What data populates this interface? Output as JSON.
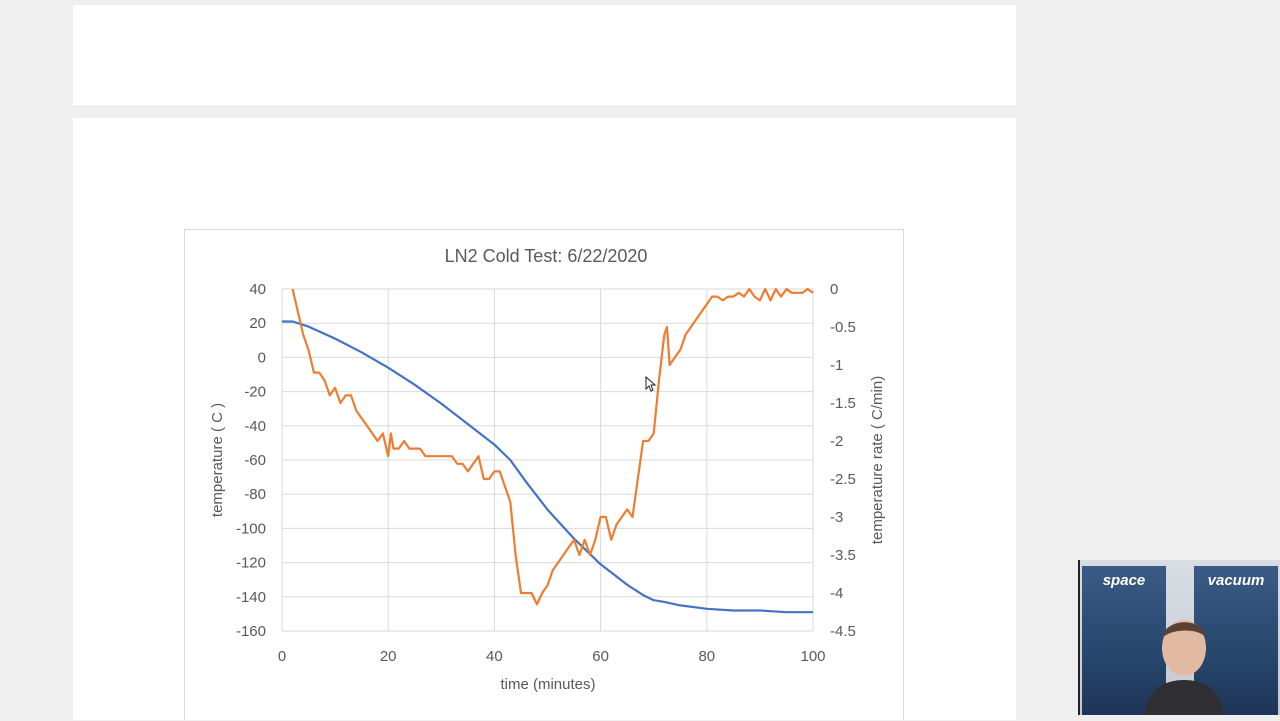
{
  "chart_data": {
    "type": "line",
    "title": "LN2 Cold Test: 6/22/2020",
    "xlabel": "time (minutes)",
    "ylabel": "temperature ( C )",
    "y2label": "temperature rate ( C/min)",
    "xlim": [
      0,
      100
    ],
    "ylim": [
      -160,
      40
    ],
    "y2lim": [
      -4.5,
      0
    ],
    "x_ticks": [
      "0",
      "20",
      "40",
      "60",
      "80",
      "100"
    ],
    "y_ticks": [
      "40",
      "20",
      "0",
      "-20",
      "-40",
      "-60",
      "-80",
      "-100",
      "-120",
      "-140",
      "-160"
    ],
    "y2_ticks": [
      "0",
      "-0.5",
      "-1",
      "-1.5",
      "-2",
      "-2.5",
      "-3",
      "-3.5",
      "-4",
      "-4.5"
    ],
    "grid": true,
    "series": [
      {
        "color": "#4472c4",
        "axis": "left",
        "points": [
          [
            0,
            21
          ],
          [
            2,
            21
          ],
          [
            5,
            18
          ],
          [
            10,
            11
          ],
          [
            15,
            3
          ],
          [
            20,
            -6
          ],
          [
            25,
            -16
          ],
          [
            30,
            -27
          ],
          [
            35,
            -39
          ],
          [
            40,
            -51
          ],
          [
            43,
            -60
          ],
          [
            46,
            -73
          ],
          [
            50,
            -89
          ],
          [
            55,
            -106
          ],
          [
            60,
            -121
          ],
          [
            65,
            -133
          ],
          [
            68,
            -139
          ],
          [
            70,
            -142
          ],
          [
            72,
            -143
          ],
          [
            75,
            -145
          ],
          [
            80,
            -147
          ],
          [
            85,
            -148
          ],
          [
            90,
            -148
          ],
          [
            95,
            -149
          ],
          [
            100,
            -149
          ]
        ]
      },
      {
        "color": "#ed7d31",
        "axis": "right",
        "points": [
          [
            2,
            0
          ],
          [
            3,
            -0.3
          ],
          [
            4,
            -0.6
          ],
          [
            5,
            -0.8
          ],
          [
            6,
            -1.1
          ],
          [
            7,
            -1.1
          ],
          [
            8,
            -1.2
          ],
          [
            9,
            -1.4
          ],
          [
            10,
            -1.3
          ],
          [
            11,
            -1.5
          ],
          [
            12,
            -1.4
          ],
          [
            13,
            -1.4
          ],
          [
            14,
            -1.6
          ],
          [
            15,
            -1.7
          ],
          [
            16,
            -1.8
          ],
          [
            17,
            -1.9
          ],
          [
            18,
            -2.0
          ],
          [
            19,
            -1.9
          ],
          [
            20,
            -2.2
          ],
          [
            20.5,
            -1.9
          ],
          [
            21,
            -2.1
          ],
          [
            22,
            -2.1
          ],
          [
            23,
            -2.0
          ],
          [
            24,
            -2.1
          ],
          [
            25,
            -2.1
          ],
          [
            26,
            -2.1
          ],
          [
            27,
            -2.2
          ],
          [
            28,
            -2.2
          ],
          [
            29,
            -2.2
          ],
          [
            30,
            -2.2
          ],
          [
            31,
            -2.2
          ],
          [
            32,
            -2.2
          ],
          [
            33,
            -2.3
          ],
          [
            34,
            -2.3
          ],
          [
            35,
            -2.4
          ],
          [
            36,
            -2.3
          ],
          [
            37,
            -2.2
          ],
          [
            38,
            -2.5
          ],
          [
            39,
            -2.5
          ],
          [
            40,
            -2.4
          ],
          [
            41,
            -2.4
          ],
          [
            42,
            -2.6
          ],
          [
            43,
            -2.8
          ],
          [
            44,
            -3.5
          ],
          [
            45,
            -4.0
          ],
          [
            46,
            -4.0
          ],
          [
            47,
            -4.0
          ],
          [
            48,
            -4.15
          ],
          [
            49,
            -4.0
          ],
          [
            50,
            -3.9
          ],
          [
            51,
            -3.7
          ],
          [
            52,
            -3.6
          ],
          [
            53,
            -3.5
          ],
          [
            54,
            -3.4
          ],
          [
            55,
            -3.3
          ],
          [
            56,
            -3.5
          ],
          [
            57,
            -3.3
          ],
          [
            58,
            -3.5
          ],
          [
            59,
            -3.3
          ],
          [
            60,
            -3.0
          ],
          [
            61,
            -3.0
          ],
          [
            62,
            -3.3
          ],
          [
            63,
            -3.1
          ],
          [
            64,
            -3.0
          ],
          [
            65,
            -2.9
          ],
          [
            66,
            -3.0
          ],
          [
            67,
            -2.5
          ],
          [
            68,
            -2.0
          ],
          [
            69,
            -2.0
          ],
          [
            70,
            -1.9
          ],
          [
            71,
            -1.2
          ],
          [
            72,
            -0.6
          ],
          [
            72.5,
            -0.5
          ],
          [
            73,
            -1.0
          ],
          [
            74,
            -0.9
          ],
          [
            75,
            -0.8
          ],
          [
            76,
            -0.6
          ],
          [
            77,
            -0.5
          ],
          [
            78,
            -0.4
          ],
          [
            79,
            -0.3
          ],
          [
            80,
            -0.2
          ],
          [
            81,
            -0.1
          ],
          [
            82,
            -0.1
          ],
          [
            83,
            -0.15
          ],
          [
            84,
            -0.1
          ],
          [
            85,
            -0.1
          ],
          [
            86,
            -0.05
          ],
          [
            87,
            -0.1
          ],
          [
            88,
            0
          ],
          [
            89,
            -0.1
          ],
          [
            90,
            -0.15
          ],
          [
            91,
            0
          ],
          [
            92,
            -0.15
          ],
          [
            93,
            0
          ],
          [
            94,
            -0.1
          ],
          [
            95,
            0
          ],
          [
            96,
            -0.05
          ],
          [
            97,
            -0.05
          ],
          [
            98,
            -0.05
          ],
          [
            99,
            0
          ],
          [
            100,
            -0.05
          ]
        ]
      }
    ]
  },
  "webcam": {
    "banner_left": "space",
    "banner_right": "vacuum"
  }
}
